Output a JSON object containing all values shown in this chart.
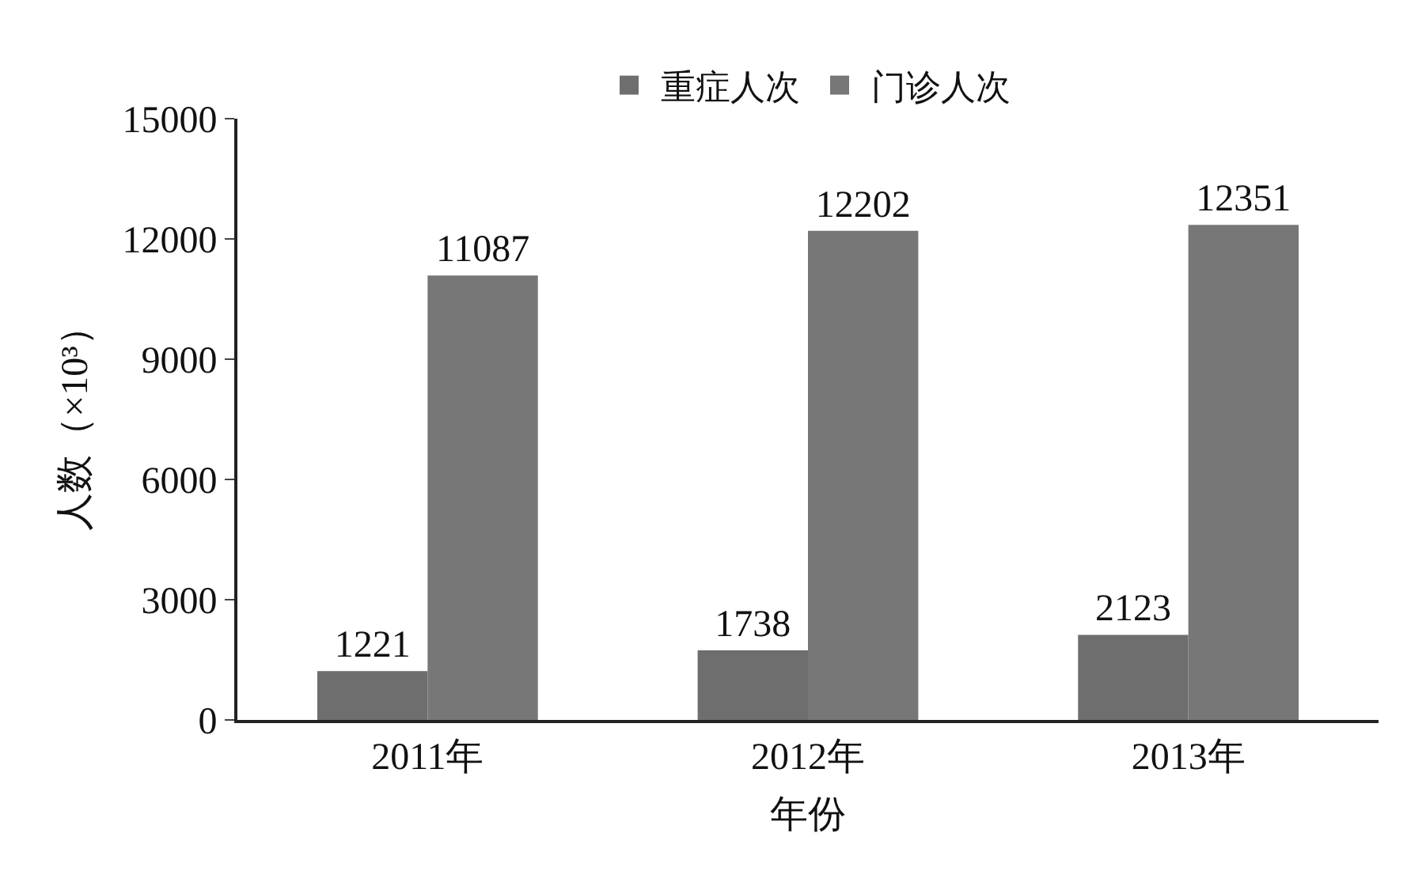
{
  "chart_data": {
    "type": "bar",
    "xlabel": "年份",
    "ylabel": "人数（×10³）",
    "categories": [
      "2011年",
      "2012年",
      "2013年"
    ],
    "series": [
      {
        "name": "重症人次",
        "color": "#6e6e6e",
        "values": [
          1221,
          1738,
          2123
        ]
      },
      {
        "name": "门诊人次",
        "color": "#777777",
        "values": [
          11087,
          12202,
          12351
        ]
      }
    ],
    "ylim": [
      0,
      15000
    ],
    "yticks": [
      0,
      3000,
      6000,
      9000,
      12000,
      15000
    ],
    "legend": "top",
    "data_labels": true
  }
}
